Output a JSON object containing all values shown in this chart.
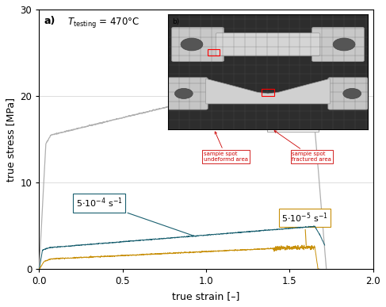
{
  "xlabel": "true strain [–]",
  "ylabel": "true stress [MPa]",
  "xlim": [
    0,
    2.0
  ],
  "ylim": [
    0,
    30
  ],
  "xticks": [
    0,
    0.5,
    1.0,
    1.5,
    2.0
  ],
  "yticks": [
    0,
    10,
    20,
    30
  ],
  "curve1_color": "#b0b0b0",
  "curve2_color": "#1a6070",
  "curve3_color": "#c8900a",
  "background_color": "#ffffff",
  "grid_color": "#d0d0d0",
  "inset_bg": "#2a2a2a"
}
